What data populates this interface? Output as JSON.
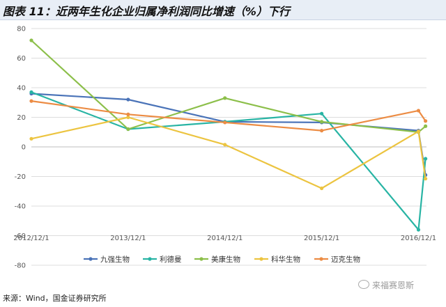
{
  "header": {
    "title": "图表 11：近两年生化企业归属净利润同比增速（%）下行"
  },
  "footer": {
    "source": "来源：Wind，国金证券研究所",
    "watermark": "来福赛恩斯"
  },
  "chart_data": {
    "type": "line",
    "title": "图表 11：近两年生化企业归属净利润同比增速（%）下行",
    "xlabel": "",
    "ylabel": "",
    "x": [
      "2012/12/1",
      "2013/12/1",
      "2014/12/1",
      "2015/12/1",
      "2016/12/1"
    ],
    "xlim": [
      2012.917,
      2017.0
    ],
    "ylim": [
      -80,
      80
    ],
    "yticks": [
      -80,
      -60,
      -40,
      -20,
      0,
      20,
      40,
      60,
      80
    ],
    "grid": true,
    "legend": "bottom",
    "series": [
      {
        "name": "九强生物",
        "color": "#4a73b8",
        "points": [
          [
            2012.917,
            36
          ],
          [
            2013.917,
            32
          ],
          [
            2014.917,
            17
          ],
          [
            2015.917,
            16.5
          ],
          [
            2016.917,
            11
          ],
          [
            2016.99,
            -19
          ]
        ]
      },
      {
        "name": "利德曼",
        "color": "#28b4a4",
        "points": [
          [
            2012.917,
            37
          ],
          [
            2013.917,
            12
          ],
          [
            2014.917,
            17
          ],
          [
            2015.917,
            22.5
          ],
          [
            2016.917,
            -56
          ],
          [
            2016.99,
            -8
          ]
        ]
      },
      {
        "name": "美康生物",
        "color": "#8cbf4a",
        "points": [
          [
            2012.917,
            72
          ],
          [
            2013.917,
            12
          ],
          [
            2014.917,
            33
          ],
          [
            2015.917,
            17
          ],
          [
            2016.917,
            10
          ],
          [
            2016.99,
            14
          ]
        ]
      },
      {
        "name": "科华生物",
        "color": "#ecc440",
        "points": [
          [
            2012.917,
            5.5
          ],
          [
            2013.917,
            20
          ],
          [
            2014.917,
            1.5
          ],
          [
            2015.917,
            -28
          ],
          [
            2016.917,
            10.5
          ],
          [
            2016.99,
            -21.5
          ]
        ]
      },
      {
        "name": "迈克生物",
        "color": "#ec8c44",
        "points": [
          [
            2012.917,
            31
          ],
          [
            2013.917,
            22
          ],
          [
            2014.917,
            16.5
          ],
          [
            2015.917,
            11
          ],
          [
            2016.917,
            24.5
          ],
          [
            2016.99,
            17.5
          ]
        ]
      }
    ]
  }
}
